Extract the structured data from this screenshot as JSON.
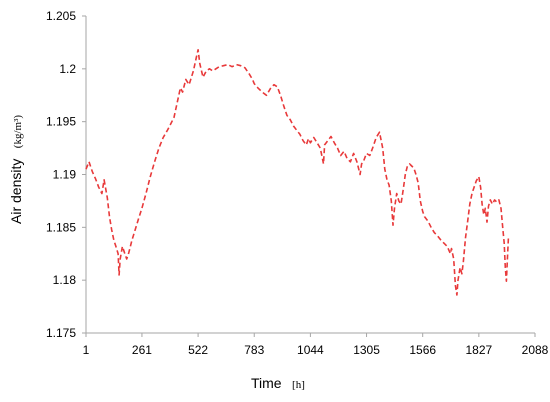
{
  "chart_data": {
    "type": "line",
    "title": "",
    "xlabel": "Time",
    "xlabel_unit": "[h]",
    "ylabel": "Air density",
    "ylabel_unit": "(kg/m³)",
    "x_ticks": [
      1,
      261,
      522,
      783,
      1044,
      1305,
      1566,
      1827,
      2088
    ],
    "y_ticks": [
      1.175,
      1.18,
      1.185,
      1.19,
      1.195,
      1.2,
      1.205
    ],
    "y_tick_labels": [
      "1.175",
      "1.18",
      "1.185",
      "1.19",
      "1.195",
      "1.2",
      "1.205"
    ],
    "xlim": [
      1,
      2088
    ],
    "ylim": [
      1.175,
      1.205
    ],
    "grid": false,
    "legend": false,
    "series": [
      {
        "color": "#e8393a",
        "line_style": "dashed",
        "points": [
          [
            1,
            1.1905
          ],
          [
            15,
            1.1912
          ],
          [
            30,
            1.1903
          ],
          [
            45,
            1.1896
          ],
          [
            60,
            1.1888
          ],
          [
            75,
            1.1882
          ],
          [
            85,
            1.1895
          ],
          [
            92,
            1.1887
          ],
          [
            100,
            1.1878
          ],
          [
            110,
            1.186
          ],
          [
            120,
            1.1848
          ],
          [
            130,
            1.1838
          ],
          [
            140,
            1.1832
          ],
          [
            150,
            1.1825
          ],
          [
            155,
            1.1805
          ],
          [
            160,
            1.182
          ],
          [
            170,
            1.1832
          ],
          [
            180,
            1.1826
          ],
          [
            190,
            1.182
          ],
          [
            200,
            1.1826
          ],
          [
            215,
            1.1838
          ],
          [
            230,
            1.1848
          ],
          [
            245,
            1.1858
          ],
          [
            261,
            1.1868
          ],
          [
            280,
            1.1882
          ],
          [
            300,
            1.1898
          ],
          [
            320,
            1.1912
          ],
          [
            340,
            1.1925
          ],
          [
            360,
            1.1935
          ],
          [
            380,
            1.1942
          ],
          [
            395,
            1.1948
          ],
          [
            410,
            1.1954
          ],
          [
            425,
            1.1968
          ],
          [
            440,
            1.1982
          ],
          [
            450,
            1.1978
          ],
          [
            465,
            1.199
          ],
          [
            480,
            1.1985
          ],
          [
            500,
            1.1998
          ],
          [
            515,
            1.2012
          ],
          [
            522,
            1.2018
          ],
          [
            530,
            1.2005
          ],
          [
            545,
            1.1992
          ],
          [
            560,
            1.1998
          ],
          [
            575,
            1.2
          ],
          [
            590,
            1.1998
          ],
          [
            605,
            1.2
          ],
          [
            620,
            1.2002
          ],
          [
            640,
            1.2003
          ],
          [
            660,
            1.2004
          ],
          [
            680,
            1.2002
          ],
          [
            700,
            1.2004
          ],
          [
            720,
            1.2003
          ],
          [
            740,
            1.2001
          ],
          [
            760,
            1.1995
          ],
          [
            775,
            1.199
          ],
          [
            783,
            1.1986
          ],
          [
            800,
            1.1982
          ],
          [
            820,
            1.1978
          ],
          [
            840,
            1.1975
          ],
          [
            860,
            1.1982
          ],
          [
            875,
            1.1985
          ],
          [
            890,
            1.1983
          ],
          [
            905,
            1.1975
          ],
          [
            920,
            1.1965
          ],
          [
            935,
            1.1956
          ],
          [
            950,
            1.1952
          ],
          [
            965,
            1.1946
          ],
          [
            980,
            1.1942
          ],
          [
            995,
            1.1938
          ],
          [
            1010,
            1.1932
          ],
          [
            1025,
            1.1928
          ],
          [
            1035,
            1.1934
          ],
          [
            1044,
            1.193
          ],
          [
            1060,
            1.1935
          ],
          [
            1075,
            1.193
          ],
          [
            1090,
            1.1925
          ],
          [
            1105,
            1.191
          ],
          [
            1110,
            1.1928
          ],
          [
            1125,
            1.1932
          ],
          [
            1140,
            1.1936
          ],
          [
            1155,
            1.193
          ],
          [
            1170,
            1.1925
          ],
          [
            1185,
            1.1918
          ],
          [
            1200,
            1.1922
          ],
          [
            1215,
            1.1915
          ],
          [
            1230,
            1.1912
          ],
          [
            1245,
            1.192
          ],
          [
            1260,
            1.1912
          ],
          [
            1275,
            1.19
          ],
          [
            1282,
            1.191
          ],
          [
            1290,
            1.1912
          ],
          [
            1305,
            1.192
          ],
          [
            1320,
            1.1918
          ],
          [
            1335,
            1.1926
          ],
          [
            1350,
            1.1935
          ],
          [
            1365,
            1.194
          ],
          [
            1380,
            1.1925
          ],
          [
            1390,
            1.1905
          ],
          [
            1400,
            1.1895
          ],
          [
            1410,
            1.189
          ],
          [
            1420,
            1.1875
          ],
          [
            1428,
            1.1852
          ],
          [
            1435,
            1.1868
          ],
          [
            1445,
            1.1882
          ],
          [
            1455,
            1.1875
          ],
          [
            1465,
            1.1872
          ],
          [
            1475,
            1.1885
          ],
          [
            1485,
            1.19
          ],
          [
            1495,
            1.1908
          ],
          [
            1505,
            1.191
          ],
          [
            1515,
            1.1908
          ],
          [
            1525,
            1.1906
          ],
          [
            1535,
            1.19
          ],
          [
            1545,
            1.1892
          ],
          [
            1555,
            1.1875
          ],
          [
            1566,
            1.1865
          ],
          [
            1575,
            1.186
          ],
          [
            1590,
            1.1856
          ],
          [
            1605,
            1.185
          ],
          [
            1620,
            1.1845
          ],
          [
            1635,
            1.1842
          ],
          [
            1650,
            1.1838
          ],
          [
            1665,
            1.1835
          ],
          [
            1680,
            1.1832
          ],
          [
            1695,
            1.1825
          ],
          [
            1700,
            1.183
          ],
          [
            1710,
            1.182
          ],
          [
            1718,
            1.1795
          ],
          [
            1725,
            1.1786
          ],
          [
            1730,
            1.18
          ],
          [
            1740,
            1.1812
          ],
          [
            1748,
            1.1806
          ],
          [
            1755,
            1.1818
          ],
          [
            1765,
            1.184
          ],
          [
            1775,
            1.1856
          ],
          [
            1785,
            1.1872
          ],
          [
            1795,
            1.1882
          ],
          [
            1805,
            1.1888
          ],
          [
            1815,
            1.1894
          ],
          [
            1827,
            1.1898
          ],
          [
            1835,
            1.1888
          ],
          [
            1842,
            1.1872
          ],
          [
            1850,
            1.1862
          ],
          [
            1857,
            1.1868
          ],
          [
            1865,
            1.1855
          ],
          [
            1872,
            1.187
          ],
          [
            1880,
            1.1876
          ],
          [
            1890,
            1.1872
          ],
          [
            1900,
            1.1876
          ],
          [
            1910,
            1.1874
          ],
          [
            1920,
            1.1876
          ],
          [
            1930,
            1.1868
          ],
          [
            1938,
            1.185
          ],
          [
            1945,
            1.1835
          ],
          [
            1950,
            1.1812
          ],
          [
            1955,
            1.1799
          ],
          [
            1960,
            1.1822
          ],
          [
            1965,
            1.1842
          ]
        ]
      }
    ]
  }
}
